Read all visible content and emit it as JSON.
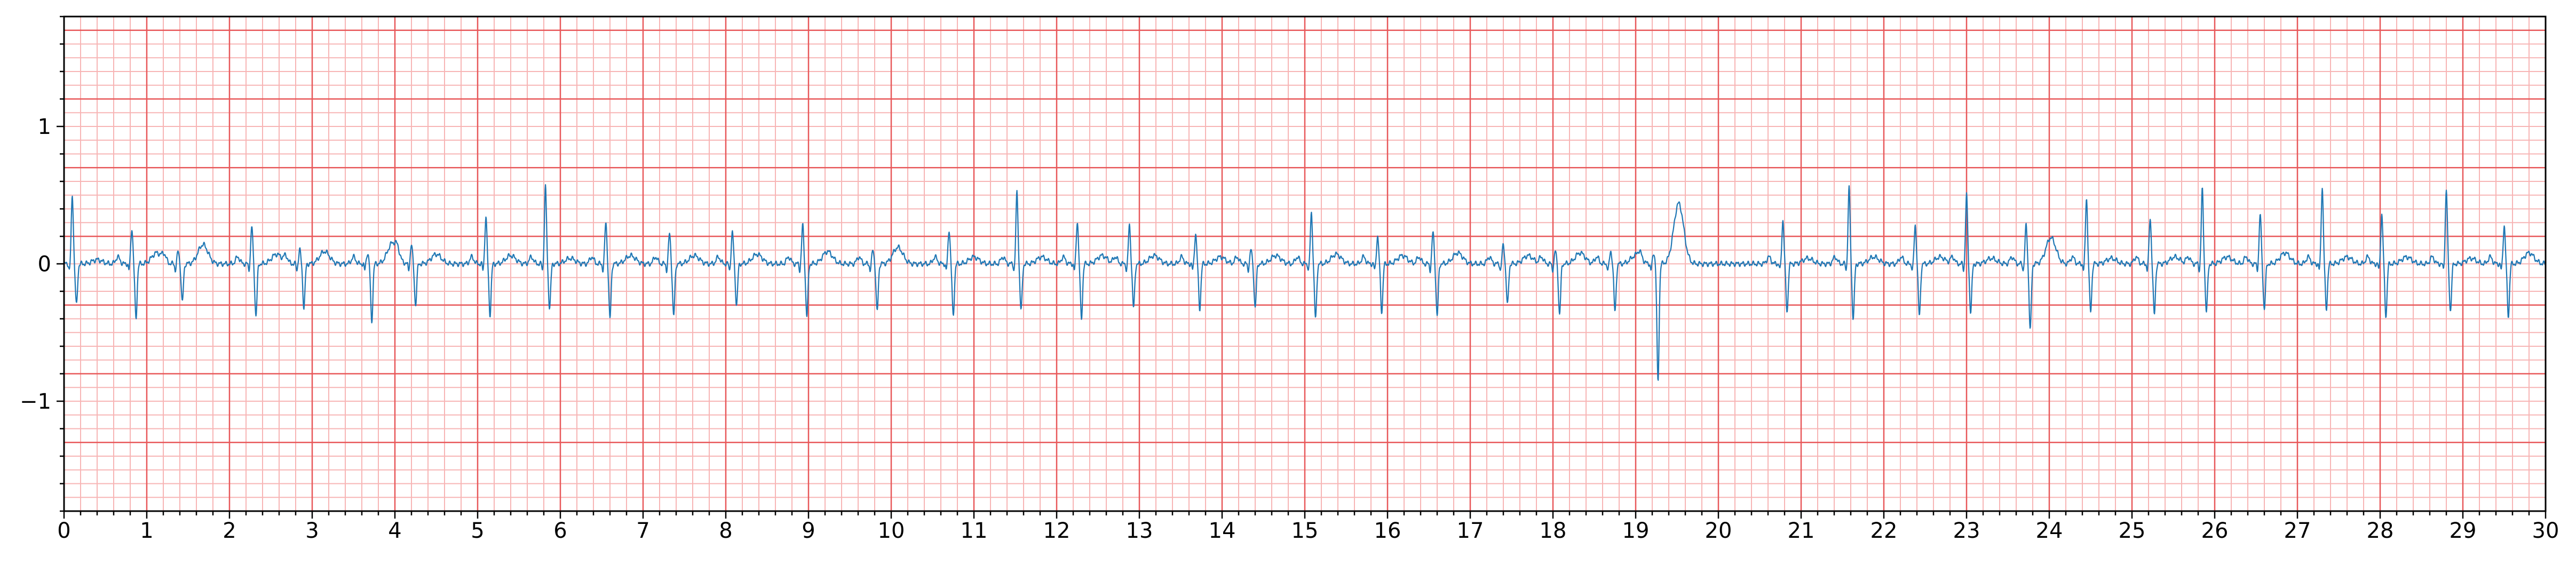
{
  "chart_data": {
    "type": "line",
    "title": "",
    "xlabel": "",
    "ylabel": "",
    "xlim": [
      0,
      30
    ],
    "ylim": [
      -1.8,
      1.8
    ],
    "x_ticks": [
      "0",
      "1",
      "2",
      "3",
      "4",
      "5",
      "6",
      "7",
      "8",
      "9",
      "10",
      "11",
      "12",
      "13",
      "14",
      "15",
      "16",
      "17",
      "18",
      "19",
      "20",
      "21",
      "22",
      "23",
      "24",
      "25",
      "26",
      "27",
      "28",
      "29",
      "30"
    ],
    "y_ticks": [
      "−1",
      "0",
      "1"
    ],
    "y_tick_values": [
      -1,
      0,
      1
    ],
    "grid": {
      "major_x": 1,
      "major_y": 0.5,
      "minor_x": 0.2,
      "minor_y": 0.1,
      "major_color": "#e8585a",
      "minor_color": "#f7b5b5"
    },
    "line_color": "#1f77b4",
    "beats": [
      {
        "t": 0.1,
        "amp": 0.5,
        "s": -0.3,
        "tw": 0.03
      },
      {
        "t": 0.82,
        "amp": 0.26,
        "s": -0.4,
        "tw": 0.08
      },
      {
        "t": 1.38,
        "amp": 0.09,
        "s": -0.28,
        "tw": 0.14
      },
      {
        "t": 2.27,
        "amp": 0.27,
        "s": -0.38,
        "tw": 0.07
      },
      {
        "t": 2.85,
        "amp": 0.1,
        "s": -0.32,
        "tw": 0.09
      },
      {
        "t": 3.67,
        "amp": 0.08,
        "s": -0.42,
        "tw": 0.15
      },
      {
        "t": 4.2,
        "amp": 0.14,
        "s": -0.3,
        "tw": 0.07
      },
      {
        "t": 5.1,
        "amp": 0.34,
        "s": -0.37,
        "tw": 0.06
      },
      {
        "t": 5.82,
        "amp": 0.56,
        "s": -0.32,
        "tw": 0.04
      },
      {
        "t": 6.55,
        "amp": 0.3,
        "s": -0.4,
        "tw": 0.06
      },
      {
        "t": 7.32,
        "amp": 0.22,
        "s": -0.38,
        "tw": 0.06
      },
      {
        "t": 8.08,
        "amp": 0.23,
        "s": -0.3,
        "tw": 0.07
      },
      {
        "t": 8.93,
        "amp": 0.28,
        "s": -0.38,
        "tw": 0.09
      },
      {
        "t": 9.78,
        "amp": 0.1,
        "s": -0.35,
        "tw": 0.12
      },
      {
        "t": 10.7,
        "amp": 0.25,
        "s": -0.38,
        "tw": 0.05
      },
      {
        "t": 11.52,
        "amp": 0.52,
        "s": -0.34,
        "tw": 0.05
      },
      {
        "t": 12.25,
        "amp": 0.31,
        "s": -0.4,
        "tw": 0.06
      },
      {
        "t": 12.88,
        "amp": 0.28,
        "s": -0.32,
        "tw": 0.06
      },
      {
        "t": 13.68,
        "amp": 0.22,
        "s": -0.33,
        "tw": 0.05
      },
      {
        "t": 14.35,
        "amp": 0.1,
        "s": -0.32,
        "tw": 0.06
      },
      {
        "t": 15.08,
        "amp": 0.37,
        "s": -0.4,
        "tw": 0.07
      },
      {
        "t": 15.88,
        "amp": 0.2,
        "s": -0.35,
        "tw": 0.06
      },
      {
        "t": 16.55,
        "amp": 0.23,
        "s": -0.38,
        "tw": 0.08
      },
      {
        "t": 17.4,
        "amp": 0.14,
        "s": -0.3,
        "tw": 0.06
      },
      {
        "t": 18.03,
        "amp": 0.09,
        "s": -0.37,
        "tw": 0.08
      },
      {
        "t": 18.7,
        "amp": 0.09,
        "s": -0.35,
        "tw": 0.06
      },
      {
        "t": 19.22,
        "amp": 0.08,
        "s": -0.86,
        "tw": 0.44
      },
      {
        "t": 20.78,
        "amp": 0.32,
        "s": -0.35,
        "tw": 0.04
      },
      {
        "t": 21.58,
        "amp": 0.55,
        "s": -0.4,
        "tw": 0.05
      },
      {
        "t": 22.38,
        "amp": 0.28,
        "s": -0.38,
        "tw": 0.05
      },
      {
        "t": 23.0,
        "amp": 0.5,
        "s": -0.35,
        "tw": 0.04
      },
      {
        "t": 23.72,
        "amp": 0.28,
        "s": -0.48,
        "tw": 0.19
      },
      {
        "t": 24.45,
        "amp": 0.48,
        "s": -0.35,
        "tw": 0.04
      },
      {
        "t": 25.22,
        "amp": 0.33,
        "s": -0.37,
        "tw": 0.05
      },
      {
        "t": 25.85,
        "amp": 0.54,
        "s": -0.35,
        "tw": 0.05
      },
      {
        "t": 26.55,
        "amp": 0.36,
        "s": -0.33,
        "tw": 0.08
      },
      {
        "t": 27.3,
        "amp": 0.56,
        "s": -0.33,
        "tw": 0.05
      },
      {
        "t": 28.02,
        "amp": 0.36,
        "s": -0.38,
        "tw": 0.05
      },
      {
        "t": 28.8,
        "amp": 0.54,
        "s": -0.34,
        "tw": 0.04
      },
      {
        "t": 29.5,
        "amp": 0.28,
        "s": -0.38,
        "tw": 0.08
      }
    ]
  }
}
